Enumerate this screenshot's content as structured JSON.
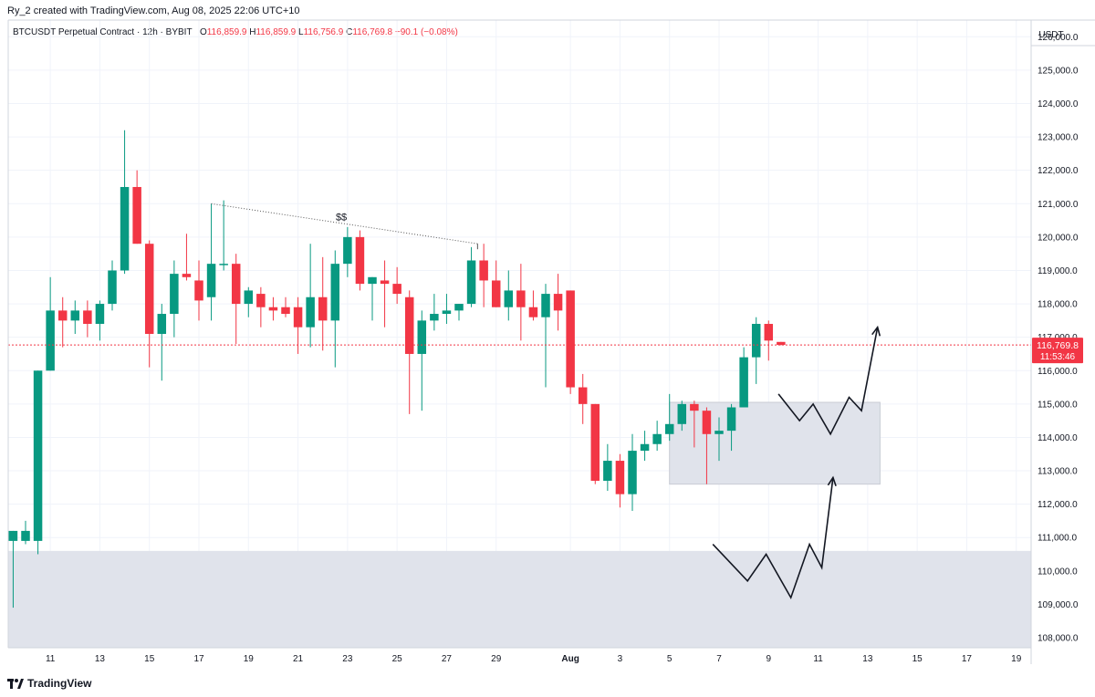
{
  "header": {
    "created_by": "Ry_2 created with TradingView.com, Aug 08, 2025 22:06 UTC+10"
  },
  "legend": {
    "symbol": "BTCUSDT Perpetual Contract · 12h · BYBIT",
    "o_label": "O",
    "o_value": "116,859.9",
    "h_label": "H",
    "h_value": "116,859.9",
    "l_label": "L",
    "l_value": "116,756.9",
    "c_label": "C",
    "c_value": "116,769.8",
    "change": "−90.1 (−0.08%)"
  },
  "colors": {
    "up": "#089981",
    "down": "#f23645",
    "zone": "#e0e3eb",
    "grid": "#f0f3fa",
    "price_line": "#f23645"
  },
  "footer": {
    "brand": "TradingView",
    "logo_icon": "tradingview-logo-icon"
  },
  "chart_data": {
    "type": "candlestick",
    "title": "BTCUSDT Perpetual Contract · 12h · BYBIT",
    "currency": "USDT",
    "ylim": [
      107700,
      126500
    ],
    "y_ticks": [
      108000,
      109000,
      110000,
      111000,
      112000,
      113000,
      114000,
      115000,
      116000,
      117000,
      118000,
      119000,
      120000,
      121000,
      122000,
      123000,
      124000,
      125000,
      126000
    ],
    "y_tick_labels": [
      "108,000.0",
      "109,000.0",
      "110,000.0",
      "111,000.0",
      "112,000.0",
      "113,000.0",
      "114,000.0",
      "115,000.0",
      "116,000.0",
      "117,000.0",
      "118,000.0",
      "119,000.0",
      "120,000.0",
      "121,000.0",
      "122,000.0",
      "123,000.0",
      "124,000.0",
      "125,000.0",
      "126,000.0"
    ],
    "x_ticks": [
      {
        "index": 3,
        "label": "11"
      },
      {
        "index": 7,
        "label": "13"
      },
      {
        "index": 11,
        "label": "15"
      },
      {
        "index": 15,
        "label": "17"
      },
      {
        "index": 19,
        "label": "19"
      },
      {
        "index": 23,
        "label": "21"
      },
      {
        "index": 27,
        "label": "23"
      },
      {
        "index": 31,
        "label": "25"
      },
      {
        "index": 35,
        "label": "27"
      },
      {
        "index": 39,
        "label": "29"
      },
      {
        "index": 45,
        "label": "Aug"
      },
      {
        "index": 49,
        "label": "3"
      },
      {
        "index": 53,
        "label": "5"
      },
      {
        "index": 57,
        "label": "7"
      },
      {
        "index": 61,
        "label": "9"
      },
      {
        "index": 65,
        "label": "11"
      },
      {
        "index": 69,
        "label": "13"
      },
      {
        "index": 73,
        "label": "15"
      },
      {
        "index": 77,
        "label": "17"
      },
      {
        "index": 81,
        "label": "19"
      }
    ],
    "x_range": [
      -0.4,
      82.2
    ],
    "candles": [
      {
        "o": 110900,
        "h": 111200,
        "l": 108900,
        "c": 111200
      },
      {
        "o": 110900,
        "h": 111500,
        "l": 110800,
        "c": 111200
      },
      {
        "o": 110900,
        "h": 116000,
        "l": 110500,
        "c": 116000
      },
      {
        "o": 116000,
        "h": 118800,
        "l": 116000,
        "c": 117800
      },
      {
        "o": 117800,
        "h": 118200,
        "l": 116700,
        "c": 117500
      },
      {
        "o": 117500,
        "h": 118100,
        "l": 117100,
        "c": 117800
      },
      {
        "o": 117800,
        "h": 118100,
        "l": 117000,
        "c": 117400
      },
      {
        "o": 117400,
        "h": 118100,
        "l": 116900,
        "c": 118000
      },
      {
        "o": 118000,
        "h": 119300,
        "l": 117800,
        "c": 119000
      },
      {
        "o": 119000,
        "h": 123200,
        "l": 118900,
        "c": 121500
      },
      {
        "o": 121500,
        "h": 122000,
        "l": 119800,
        "c": 119800
      },
      {
        "o": 119800,
        "h": 119900,
        "l": 116100,
        "c": 117100
      },
      {
        "o": 117100,
        "h": 118000,
        "l": 115700,
        "c": 117700
      },
      {
        "o": 117700,
        "h": 119300,
        "l": 117000,
        "c": 118900
      },
      {
        "o": 118900,
        "h": 120100,
        "l": 118700,
        "c": 118800
      },
      {
        "o": 118700,
        "h": 119300,
        "l": 117500,
        "c": 118100
      },
      {
        "o": 118200,
        "h": 121000,
        "l": 117500,
        "c": 119200
      },
      {
        "o": 119200,
        "h": 121100,
        "l": 119000,
        "c": 119200
      },
      {
        "o": 119200,
        "h": 119500,
        "l": 116800,
        "c": 118000
      },
      {
        "o": 118000,
        "h": 118500,
        "l": 117600,
        "c": 118400
      },
      {
        "o": 118300,
        "h": 118500,
        "l": 117300,
        "c": 117900
      },
      {
        "o": 117900,
        "h": 118200,
        "l": 117500,
        "c": 117800
      },
      {
        "o": 117900,
        "h": 118200,
        "l": 117600,
        "c": 117700
      },
      {
        "o": 117900,
        "h": 118200,
        "l": 116500,
        "c": 117300
      },
      {
        "o": 117300,
        "h": 119800,
        "l": 116700,
        "c": 118200
      },
      {
        "o": 118200,
        "h": 119400,
        "l": 116600,
        "c": 117500
      },
      {
        "o": 117500,
        "h": 119600,
        "l": 116100,
        "c": 119200
      },
      {
        "o": 119200,
        "h": 120300,
        "l": 118800,
        "c": 120000
      },
      {
        "o": 120000,
        "h": 120200,
        "l": 118400,
        "c": 118600
      },
      {
        "o": 118600,
        "h": 118800,
        "l": 117500,
        "c": 118800
      },
      {
        "o": 118700,
        "h": 119300,
        "l": 117300,
        "c": 118600
      },
      {
        "o": 118600,
        "h": 119100,
        "l": 118000,
        "c": 118300
      },
      {
        "o": 118200,
        "h": 118400,
        "l": 114700,
        "c": 116500
      },
      {
        "o": 116500,
        "h": 117800,
        "l": 114800,
        "c": 117500
      },
      {
        "o": 117500,
        "h": 118300,
        "l": 117200,
        "c": 117700
      },
      {
        "o": 117700,
        "h": 118300,
        "l": 117400,
        "c": 117800
      },
      {
        "o": 117800,
        "h": 118000,
        "l": 117500,
        "c": 118000
      },
      {
        "o": 118000,
        "h": 119700,
        "l": 117900,
        "c": 119300
      },
      {
        "o": 119300,
        "h": 119800,
        "l": 117900,
        "c": 118700
      },
      {
        "o": 118700,
        "h": 119300,
        "l": 117900,
        "c": 117900
      },
      {
        "o": 117900,
        "h": 119000,
        "l": 117500,
        "c": 118400
      },
      {
        "o": 118400,
        "h": 119200,
        "l": 116900,
        "c": 117900
      },
      {
        "o": 117900,
        "h": 118400,
        "l": 117500,
        "c": 117600
      },
      {
        "o": 117600,
        "h": 118600,
        "l": 115500,
        "c": 118300
      },
      {
        "o": 118300,
        "h": 118900,
        "l": 117200,
        "c": 117800
      },
      {
        "o": 118400,
        "h": 118400,
        "l": 115300,
        "c": 115500
      },
      {
        "o": 115500,
        "h": 115900,
        "l": 114400,
        "c": 115000
      },
      {
        "o": 115000,
        "h": 115000,
        "l": 112600,
        "c": 112700
      },
      {
        "o": 112700,
        "h": 113800,
        "l": 112400,
        "c": 113300
      },
      {
        "o": 113300,
        "h": 113500,
        "l": 111900,
        "c": 112300
      },
      {
        "o": 112300,
        "h": 114100,
        "l": 111800,
        "c": 113600
      },
      {
        "o": 113600,
        "h": 114200,
        "l": 113300,
        "c": 113800
      },
      {
        "o": 113800,
        "h": 114500,
        "l": 113600,
        "c": 114100
      },
      {
        "o": 114100,
        "h": 115300,
        "l": 113900,
        "c": 114400
      },
      {
        "o": 114400,
        "h": 115100,
        "l": 114200,
        "c": 115000
      },
      {
        "o": 115000,
        "h": 115100,
        "l": 113700,
        "c": 114800
      },
      {
        "o": 114800,
        "h": 114900,
        "l": 112600,
        "c": 114100
      },
      {
        "o": 114100,
        "h": 114600,
        "l": 113300,
        "c": 114200
      },
      {
        "o": 114200,
        "h": 115000,
        "l": 113600,
        "c": 114900
      },
      {
        "o": 114900,
        "h": 116700,
        "l": 114900,
        "c": 116400
      },
      {
        "o": 116400,
        "h": 117600,
        "l": 115600,
        "c": 117400
      },
      {
        "o": 117400,
        "h": 117500,
        "l": 116300,
        "c": 116900
      },
      {
        "o": 116860,
        "h": 116860,
        "l": 116757,
        "c": 116770
      }
    ],
    "current_price": 116769.8,
    "current_price_label": "116,769.8",
    "countdown": "11:53:46",
    "zones": [
      {
        "x0": -0.4,
        "x1": 82.2,
        "y_low": 107700,
        "y_high": 110600
      },
      {
        "x0": 53.0,
        "x1": 70.0,
        "y_low": 112600,
        "y_high": 115050
      }
    ],
    "trendline": {
      "x0": 16,
      "y0": 121000,
      "x1": 37.5,
      "y1": 119800,
      "style": "dotted"
    },
    "annotations": [
      {
        "text": "$$",
        "x": 26.5,
        "y": 120500
      }
    ],
    "paths": [
      [
        [
          56.5,
          110800
        ],
        [
          59.3,
          109700
        ],
        [
          60.8,
          110500
        ],
        [
          62.8,
          109200
        ],
        [
          64.3,
          110800
        ],
        [
          65.3,
          110100
        ],
        [
          66.2,
          112800
        ]
      ],
      [
        [
          61.8,
          115300
        ],
        [
          63.5,
          114500
        ],
        [
          64.6,
          115000
        ],
        [
          66.0,
          114100
        ],
        [
          67.5,
          115200
        ],
        [
          68.5,
          114800
        ],
        [
          69.8,
          117300
        ]
      ]
    ]
  }
}
